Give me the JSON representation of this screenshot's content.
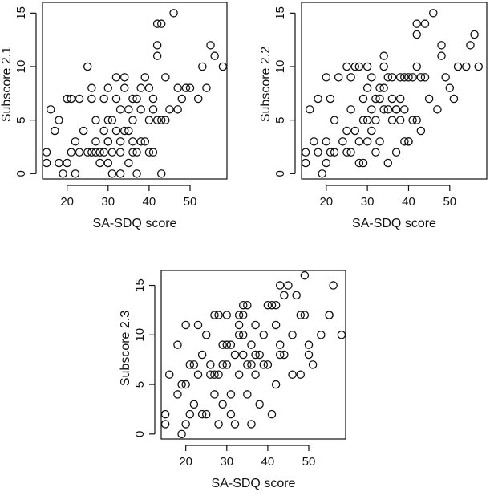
{
  "chart_data": [
    {
      "type": "scatter",
      "xlabel": "SA-SDQ score",
      "ylabel": "Subscore 2.1",
      "xlim": [
        14,
        59
      ],
      "ylim": [
        -0.5,
        16
      ],
      "xticks": [
        20,
        30,
        40,
        50
      ],
      "yticks": [
        0,
        5,
        10,
        15
      ],
      "points": [
        [
          15,
          1
        ],
        [
          15,
          2
        ],
        [
          16,
          6
        ],
        [
          17,
          4
        ],
        [
          18,
          1
        ],
        [
          18,
          5
        ],
        [
          19,
          0
        ],
        [
          20,
          1
        ],
        [
          20,
          7
        ],
        [
          21,
          2
        ],
        [
          21,
          7
        ],
        [
          22,
          0
        ],
        [
          22,
          3
        ],
        [
          23,
          2
        ],
        [
          23,
          7
        ],
        [
          24,
          4
        ],
        [
          25,
          10
        ],
        [
          25,
          2
        ],
        [
          26,
          2
        ],
        [
          26,
          7
        ],
        [
          26,
          8
        ],
        [
          27,
          3
        ],
        [
          27,
          5
        ],
        [
          27,
          2
        ],
        [
          28,
          1
        ],
        [
          28,
          2
        ],
        [
          29,
          2
        ],
        [
          29,
          7
        ],
        [
          29,
          4
        ],
        [
          30,
          1
        ],
        [
          30,
          3
        ],
        [
          30,
          3
        ],
        [
          30,
          5
        ],
        [
          30,
          8
        ],
        [
          31,
          2
        ],
        [
          31,
          0
        ],
        [
          31,
          5
        ],
        [
          32,
          9
        ],
        [
          32,
          4
        ],
        [
          32,
          7
        ],
        [
          33,
          2
        ],
        [
          33,
          3
        ],
        [
          33,
          6
        ],
        [
          33,
          0
        ],
        [
          34,
          9
        ],
        [
          34,
          8
        ],
        [
          34,
          4
        ],
        [
          35,
          6
        ],
        [
          35,
          1
        ],
        [
          35,
          4
        ],
        [
          36,
          7
        ],
        [
          36,
          5
        ],
        [
          36,
          3
        ],
        [
          36,
          2
        ],
        [
          37,
          2
        ],
        [
          37,
          7
        ],
        [
          37,
          0
        ],
        [
          38,
          3
        ],
        [
          38,
          6
        ],
        [
          38,
          8
        ],
        [
          39,
          9
        ],
        [
          39,
          3
        ],
        [
          40,
          5
        ],
        [
          40,
          8
        ],
        [
          40,
          2
        ],
        [
          41,
          7
        ],
        [
          41,
          6
        ],
        [
          41,
          2
        ],
        [
          42,
          14
        ],
        [
          42,
          12
        ],
        [
          42,
          11
        ],
        [
          42,
          5
        ],
        [
          43,
          14
        ],
        [
          43,
          5
        ],
        [
          43,
          0
        ],
        [
          44,
          9
        ],
        [
          44,
          5
        ],
        [
          45,
          6
        ],
        [
          46,
          15
        ],
        [
          47,
          6
        ],
        [
          47,
          8
        ],
        [
          48,
          7
        ],
        [
          49,
          8
        ],
        [
          50,
          8
        ],
        [
          52,
          7
        ],
        [
          53,
          10
        ],
        [
          54,
          8
        ],
        [
          55,
          12
        ],
        [
          56,
          11
        ],
        [
          58,
          10
        ]
      ]
    },
    {
      "type": "scatter",
      "xlabel": "SA-SDQ score",
      "ylabel": "Subscore 2.2",
      "xlim": [
        14,
        59
      ],
      "ylim": [
        -0.5,
        16
      ],
      "xticks": [
        20,
        30,
        40,
        50
      ],
      "yticks": [
        0,
        5,
        10,
        15
      ],
      "points": [
        [
          15,
          1
        ],
        [
          15,
          2
        ],
        [
          16,
          6
        ],
        [
          17,
          3
        ],
        [
          18,
          7
        ],
        [
          18,
          2
        ],
        [
          19,
          0
        ],
        [
          20,
          1
        ],
        [
          20,
          3
        ],
        [
          20,
          9
        ],
        [
          21,
          2
        ],
        [
          21,
          7
        ],
        [
          22,
          5
        ],
        [
          22,
          2
        ],
        [
          23,
          9
        ],
        [
          24,
          3
        ],
        [
          25,
          4
        ],
        [
          25,
          10
        ],
        [
          25,
          2
        ],
        [
          26,
          6
        ],
        [
          26,
          9
        ],
        [
          26,
          2
        ],
        [
          27,
          10
        ],
        [
          27,
          4
        ],
        [
          28,
          3
        ],
        [
          28,
          10
        ],
        [
          28,
          1
        ],
        [
          29,
          7
        ],
        [
          29,
          5
        ],
        [
          29,
          1
        ],
        [
          30,
          3
        ],
        [
          30,
          5
        ],
        [
          30,
          10
        ],
        [
          30,
          8
        ],
        [
          31,
          4
        ],
        [
          31,
          6
        ],
        [
          31,
          9
        ],
        [
          32,
          7
        ],
        [
          32,
          5
        ],
        [
          32,
          2
        ],
        [
          33,
          8
        ],
        [
          33,
          3
        ],
        [
          33,
          7
        ],
        [
          34,
          10
        ],
        [
          34,
          11
        ],
        [
          34,
          8
        ],
        [
          34,
          6
        ],
        [
          35,
          9
        ],
        [
          35,
          6
        ],
        [
          35,
          1
        ],
        [
          36,
          9
        ],
        [
          36,
          7
        ],
        [
          36,
          5
        ],
        [
          37,
          6
        ],
        [
          37,
          6
        ],
        [
          37,
          2
        ],
        [
          38,
          9
        ],
        [
          38,
          5
        ],
        [
          38,
          7
        ],
        [
          39,
          9
        ],
        [
          39,
          6
        ],
        [
          39,
          3
        ],
        [
          40,
          3
        ],
        [
          40,
          9
        ],
        [
          40,
          3
        ],
        [
          41,
          9
        ],
        [
          41,
          5
        ],
        [
          42,
          14
        ],
        [
          42,
          10
        ],
        [
          42,
          13
        ],
        [
          42,
          5
        ],
        [
          43,
          9
        ],
        [
          43,
          4
        ],
        [
          44,
          14
        ],
        [
          44,
          9
        ],
        [
          45,
          7
        ],
        [
          46,
          15
        ],
        [
          47,
          6
        ],
        [
          48,
          12
        ],
        [
          48,
          11
        ],
        [
          49,
          9
        ],
        [
          50,
          8
        ],
        [
          51,
          7
        ],
        [
          52,
          10
        ],
        [
          54,
          10
        ],
        [
          55,
          12
        ],
        [
          56,
          13
        ],
        [
          57,
          10
        ]
      ]
    },
    {
      "type": "scatter",
      "xlabel": "SA-SDQ score",
      "ylabel": "Subscore 2.3",
      "xlim": [
        14,
        59
      ],
      "ylim": [
        -0.5,
        16.5
      ],
      "xticks": [
        20,
        30,
        40,
        50
      ],
      "yticks": [
        0,
        5,
        10,
        15
      ],
      "points": [
        [
          15,
          1
        ],
        [
          15,
          2
        ],
        [
          16,
          6
        ],
        [
          18,
          4
        ],
        [
          18,
          9
        ],
        [
          19,
          5
        ],
        [
          19,
          0
        ],
        [
          20,
          1
        ],
        [
          20,
          11
        ],
        [
          20,
          5
        ],
        [
          21,
          2
        ],
        [
          21,
          7
        ],
        [
          22,
          3
        ],
        [
          22,
          7
        ],
        [
          23,
          11
        ],
        [
          23,
          6
        ],
        [
          24,
          8
        ],
        [
          24,
          2
        ],
        [
          25,
          2
        ],
        [
          25,
          10
        ],
        [
          26,
          6
        ],
        [
          26,
          7
        ],
        [
          27,
          12
        ],
        [
          27,
          6
        ],
        [
          27,
          4
        ],
        [
          28,
          12
        ],
        [
          28,
          1
        ],
        [
          28,
          6
        ],
        [
          29,
          9
        ],
        [
          29,
          7
        ],
        [
          29,
          3
        ],
        [
          30,
          12
        ],
        [
          30,
          7
        ],
        [
          30,
          9
        ],
        [
          31,
          9
        ],
        [
          31,
          4
        ],
        [
          31,
          2
        ],
        [
          32,
          1
        ],
        [
          32,
          8
        ],
        [
          33,
          11
        ],
        [
          33,
          10
        ],
        [
          33,
          12
        ],
        [
          33,
          6
        ],
        [
          34,
          13
        ],
        [
          34,
          12
        ],
        [
          34,
          10
        ],
        [
          34,
          8
        ],
        [
          35,
          13
        ],
        [
          35,
          7
        ],
        [
          35,
          4
        ],
        [
          36,
          9
        ],
        [
          36,
          7
        ],
        [
          36,
          1
        ],
        [
          37,
          11
        ],
        [
          37,
          8
        ],
        [
          37,
          6
        ],
        [
          38,
          8
        ],
        [
          38,
          3
        ],
        [
          39,
          10
        ],
        [
          39,
          7
        ],
        [
          40,
          7
        ],
        [
          40,
          13
        ],
        [
          41,
          2
        ],
        [
          41,
          13
        ],
        [
          42,
          13
        ],
        [
          42,
          11
        ],
        [
          42,
          5
        ],
        [
          43,
          15
        ],
        [
          43,
          9
        ],
        [
          43,
          8
        ],
        [
          44,
          14
        ],
        [
          44,
          8
        ],
        [
          45,
          15
        ],
        [
          46,
          10
        ],
        [
          46,
          6
        ],
        [
          47,
          14
        ],
        [
          48,
          12
        ],
        [
          48,
          6
        ],
        [
          49,
          16
        ],
        [
          49,
          12
        ],
        [
          50,
          9
        ],
        [
          50,
          8
        ],
        [
          51,
          7
        ],
        [
          53,
          10
        ],
        [
          55,
          12
        ],
        [
          55,
          12
        ],
        [
          56,
          15
        ],
        [
          58,
          10
        ]
      ]
    }
  ]
}
